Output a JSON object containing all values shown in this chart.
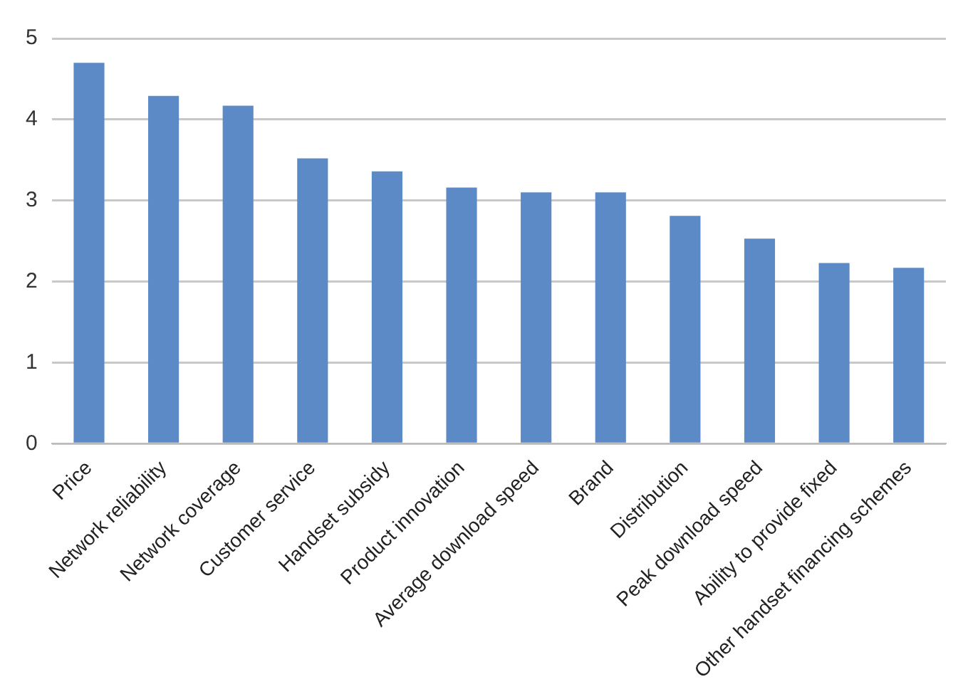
{
  "chart_data": {
    "type": "bar",
    "categories": [
      "Price",
      "Network reliability",
      "Network coverage",
      "Customer service",
      "Handset subsidy",
      "Product innovation",
      "Average download speed",
      "Brand",
      "Distribution",
      "Peak download speed",
      "Ability to provide fixed",
      "Other handset financing schemes"
    ],
    "values": [
      4.7,
      4.29,
      4.17,
      3.52,
      3.36,
      3.16,
      3.1,
      3.1,
      2.81,
      2.53,
      2.23,
      2.17
    ],
    "color": "#5b8ac6",
    "ylim": [
      0,
      5
    ],
    "yticks": [
      0,
      1,
      2,
      3,
      4,
      5
    ],
    "grid": "y",
    "legend": false
  }
}
